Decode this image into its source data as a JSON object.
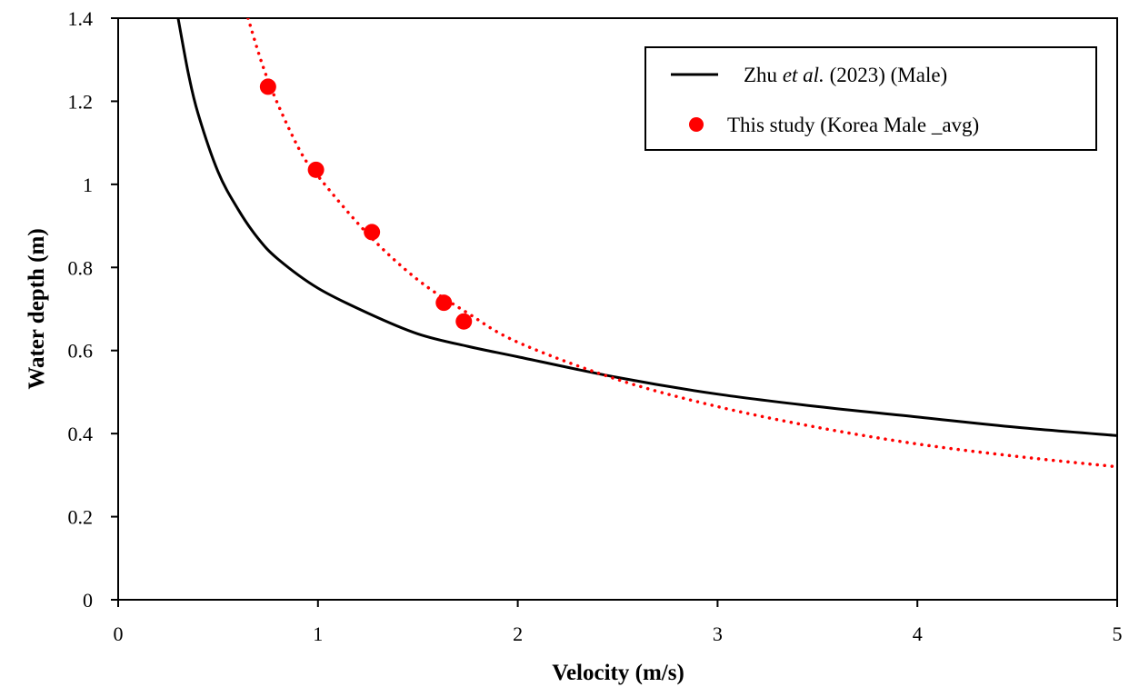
{
  "chart_data": {
    "type": "scatter",
    "title": "",
    "xlabel": "Velocity (m/s)",
    "ylabel": "Water depth (m)",
    "xlim": [
      0,
      5
    ],
    "ylim": [
      0,
      1.4
    ],
    "xticks": [
      0,
      1,
      2,
      3,
      4,
      5
    ],
    "yticks": [
      0,
      0.2,
      0.4,
      0.6,
      0.8,
      1,
      1.2,
      1.4
    ],
    "xtick_labels": [
      "0",
      "1",
      "2",
      "3",
      "4",
      "5"
    ],
    "ytick_labels": [
      "0",
      "0.2",
      "0.4",
      "0.6",
      "0.8",
      "1",
      "1.2",
      "1.4"
    ],
    "grid": false,
    "legend_position": "top-right",
    "series": [
      {
        "name": "Zhu et al. (2023) (Male)",
        "legend_parts": [
          "Zhu ",
          "et al.",
          " (2023) (Male)"
        ],
        "kind": "line",
        "style": "solid",
        "color": "#000000",
        "x": [
          0.3,
          0.35,
          0.4,
          0.5,
          0.6,
          0.7,
          0.8,
          1.0,
          1.25,
          1.5,
          1.75,
          2.0,
          2.5,
          3.0,
          3.5,
          4.0,
          4.5,
          5.0
        ],
        "y": [
          1.4,
          1.27,
          1.17,
          1.03,
          0.94,
          0.87,
          0.82,
          0.75,
          0.69,
          0.64,
          0.61,
          0.585,
          0.535,
          0.495,
          0.465,
          0.44,
          0.415,
          0.395
        ]
      },
      {
        "name": "This study (Korea Male _avg)",
        "kind": "scatter",
        "color": "#ff0000",
        "x": [
          0.75,
          0.99,
          1.27,
          1.63,
          1.73
        ],
        "y": [
          1.235,
          1.035,
          0.885,
          0.715,
          0.67
        ]
      },
      {
        "name": "This study fit",
        "kind": "line",
        "style": "dotted",
        "color": "#ff0000",
        "in_legend": false,
        "x": [
          0.65,
          0.75,
          0.9,
          1.0,
          1.25,
          1.5,
          1.75,
          2.0,
          2.5,
          3.0,
          3.5,
          4.0,
          4.5,
          5.0
        ],
        "y": [
          1.4,
          1.25,
          1.09,
          1.02,
          0.88,
          0.77,
          0.69,
          0.62,
          0.53,
          0.465,
          0.415,
          0.375,
          0.345,
          0.32
        ]
      }
    ]
  }
}
